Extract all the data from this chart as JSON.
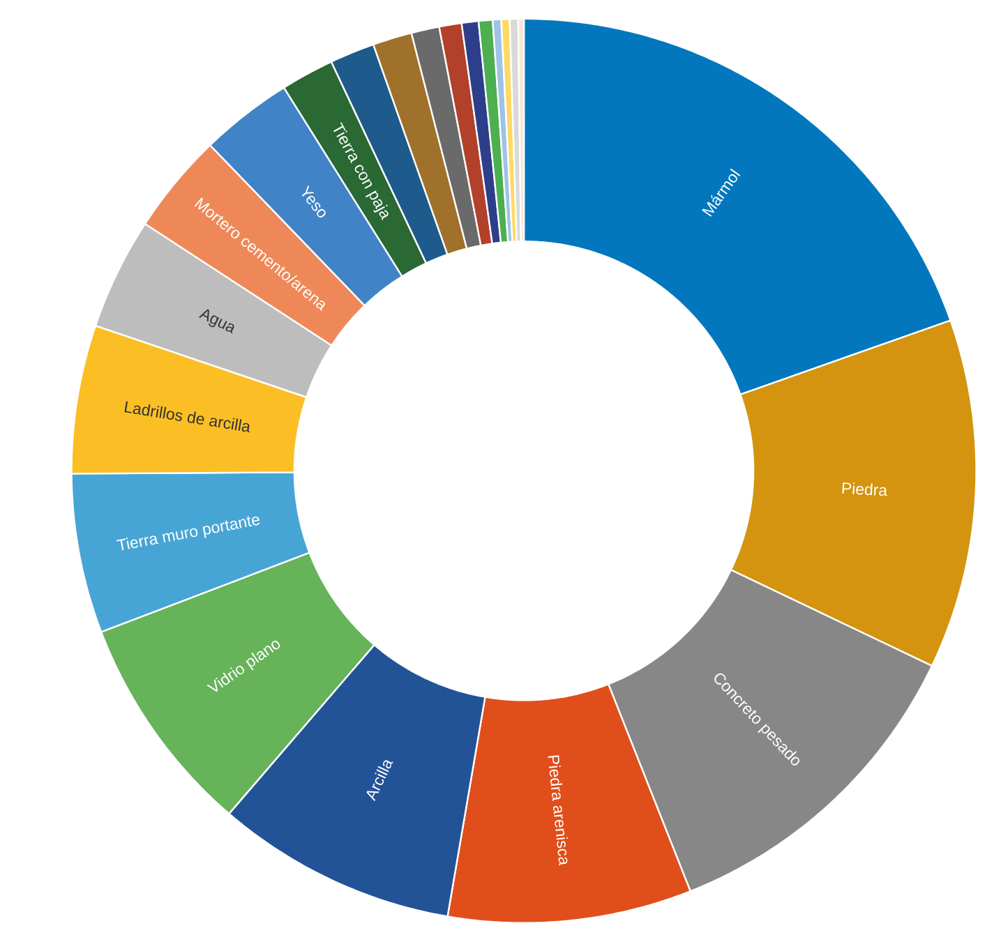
{
  "chart_data": {
    "type": "donut",
    "categories": [
      "Mármol",
      "Piedra",
      "Concreto pesado",
      "Piedra arenisca",
      "Arcilla",
      "Vidrio plano",
      "Tierra muro portante",
      "Ladrillos de arcilla",
      "Agua",
      "Mortero cemento/arena",
      "Yeso",
      "Tierra con paja",
      null,
      null,
      null,
      null,
      null,
      null,
      null,
      null,
      null,
      null
    ],
    "values": [
      19.6,
      12.5,
      11.9,
      8.7,
      8.6,
      7.9,
      5.7,
      5.3,
      4.0,
      3.6,
      3.3,
      1.9,
      1.6,
      1.4,
      1.0,
      0.8,
      0.6,
      0.5,
      0.3,
      0.3,
      0.3,
      0.2
    ],
    "colors": [
      "#0277BD",
      "#D4940F",
      "#878787",
      "#E04E1B",
      "#235397",
      "#66B35A",
      "#47A5D6",
      "#FBBF25",
      "#BDBDBD",
      "#EF8858",
      "#4183C7",
      "#2A6834",
      "#1F5A8C",
      "#A0712A",
      "#6A6A6A",
      "#B2402A",
      "#2D3F8A",
      "#4CAF50",
      "#9DC3E6",
      "#FFD966",
      "#D9D9D9",
      "#F8E5D6"
    ]
  }
}
